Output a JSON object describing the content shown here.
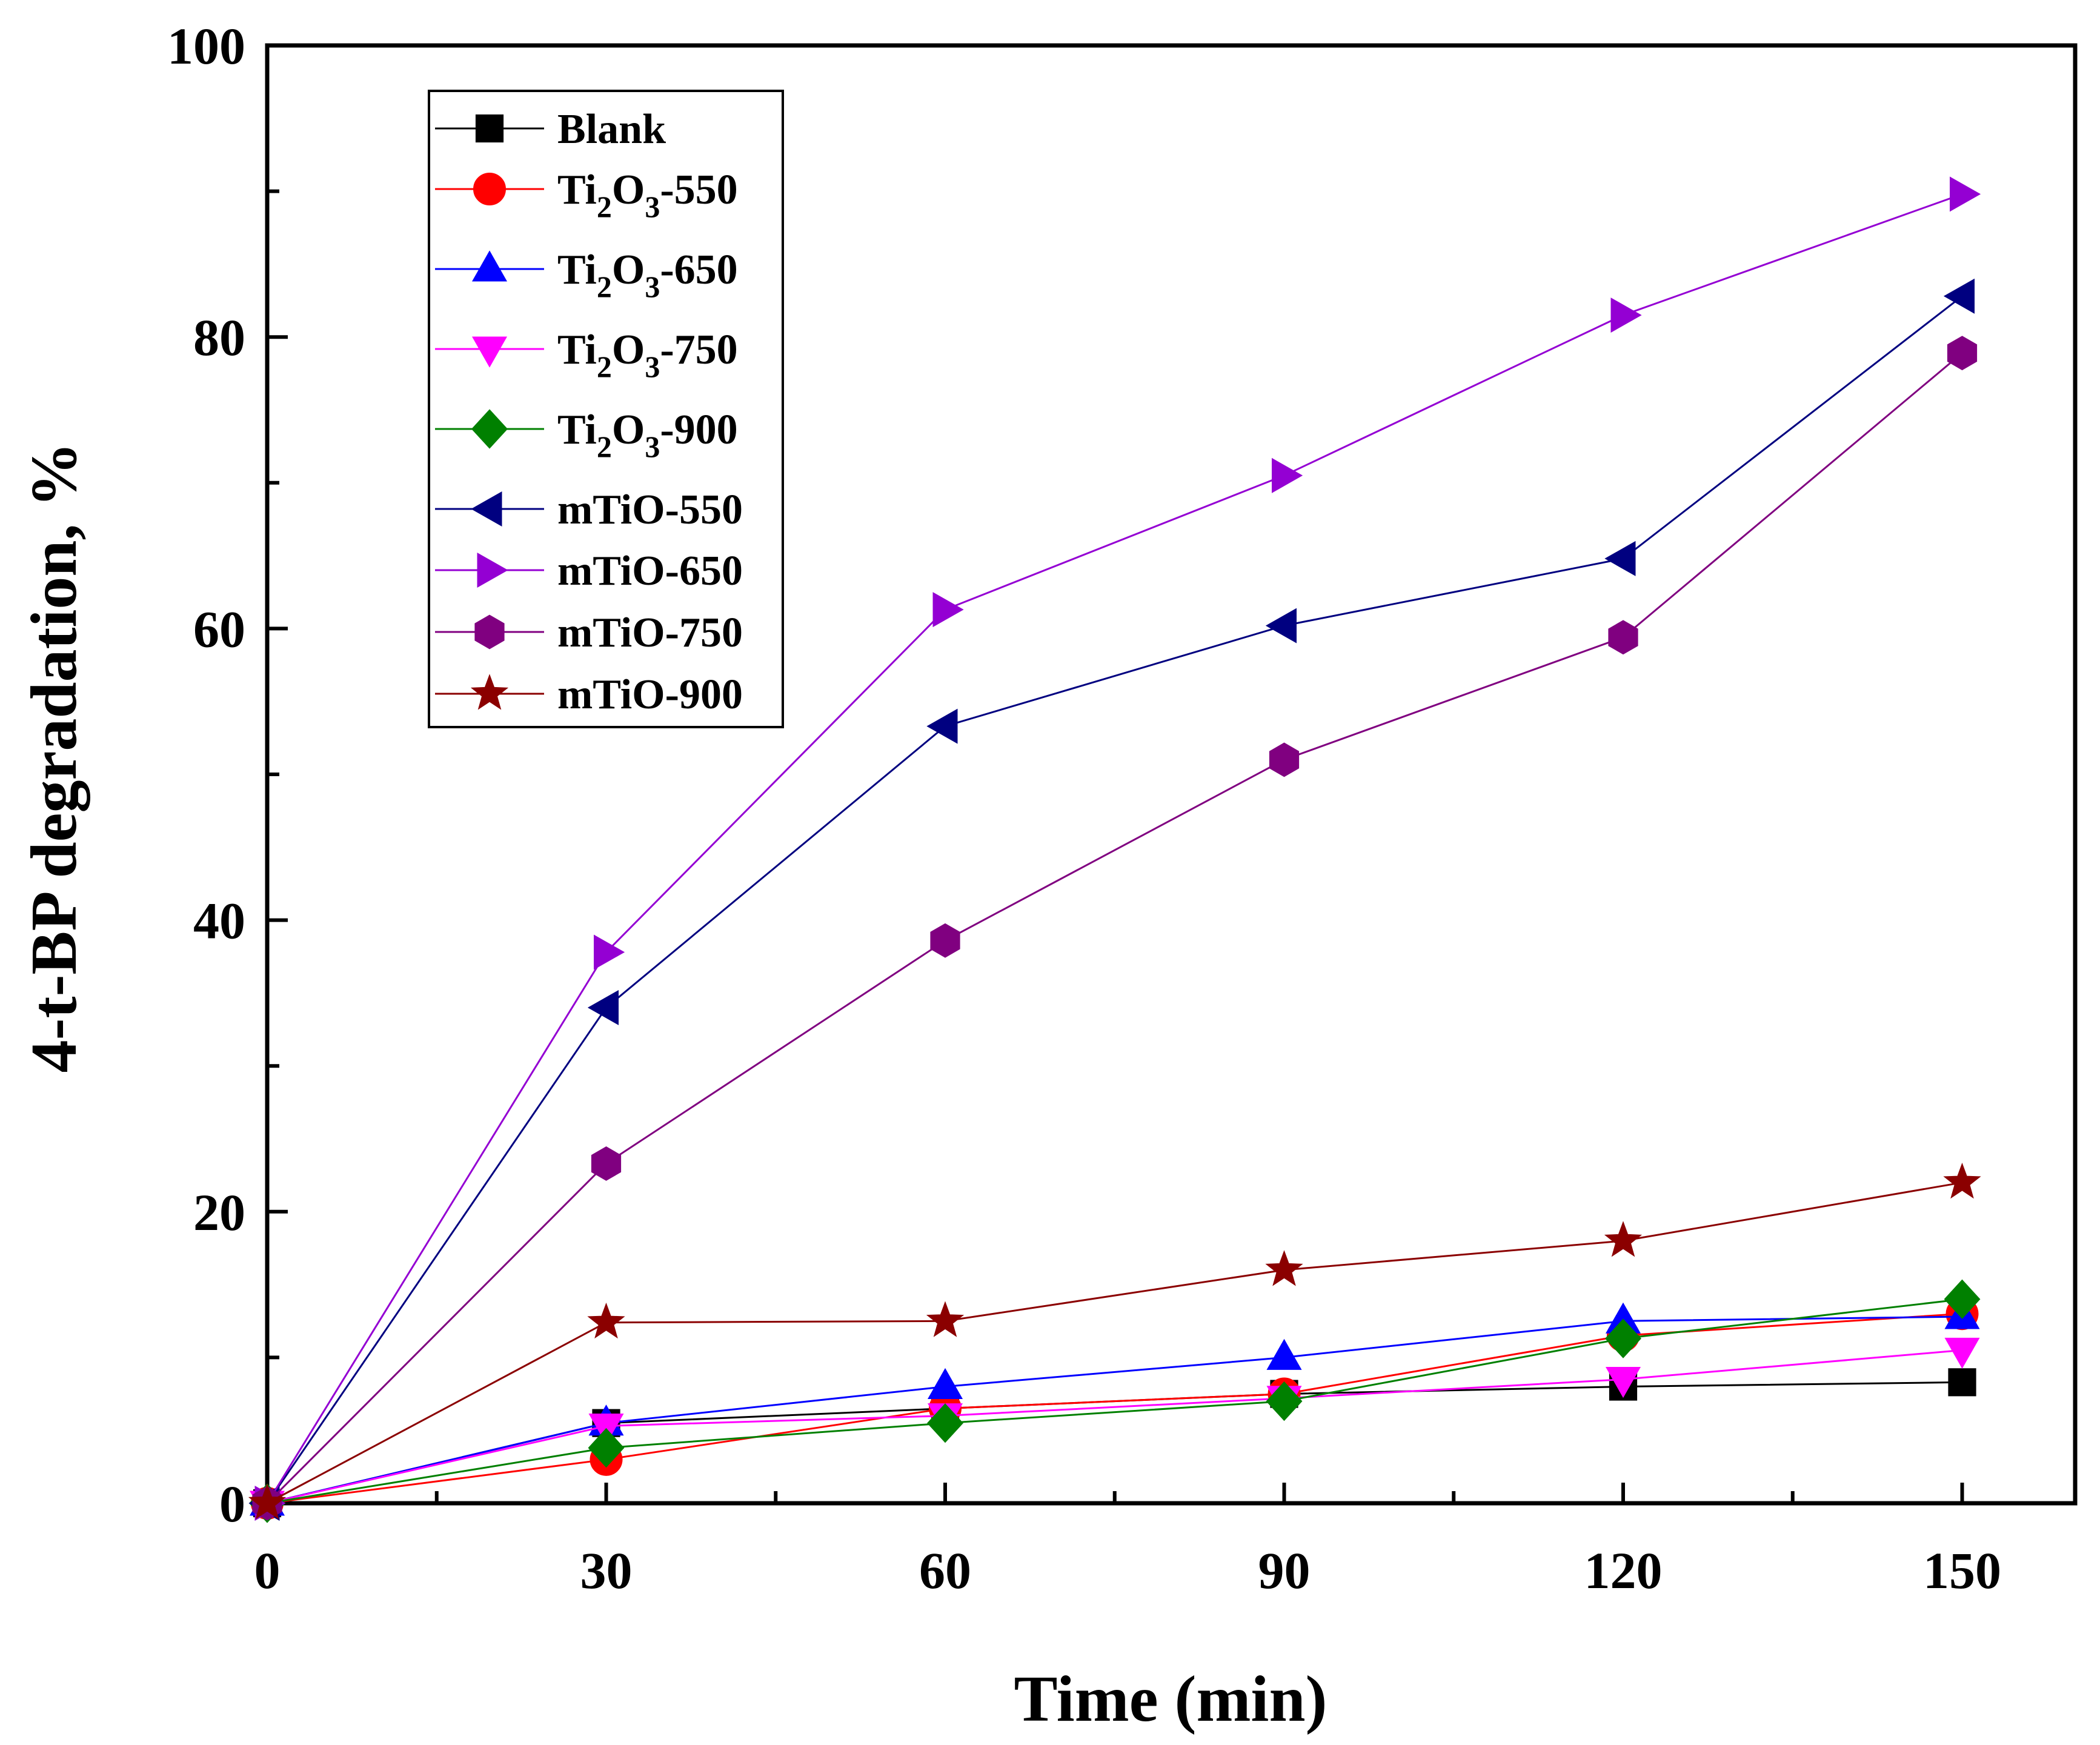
{
  "chart_data": {
    "type": "line",
    "title": "",
    "xlabel": "Time (min)",
    "ylabel": "4-t-BP degradation, %",
    "xlim": [
      0,
      160
    ],
    "ylim": [
      0,
      100
    ],
    "xticks": [
      0,
      30,
      60,
      90,
      120,
      150
    ],
    "xtick_labels": [
      "0",
      "30",
      "60",
      "90",
      "120",
      "150"
    ],
    "yticks": [
      0,
      20,
      40,
      60,
      80,
      100
    ],
    "ytick_labels": [
      "0",
      "20",
      "40",
      "60",
      "80",
      "100"
    ],
    "grid": false,
    "legend_position": "top-left",
    "x": [
      0,
      30,
      60,
      90,
      120,
      150
    ],
    "series": [
      {
        "name": "Blank",
        "legend_main": "Blank",
        "legend_sub": [],
        "color": "#000000",
        "marker": "square",
        "values": [
          0,
          5.5,
          6.5,
          7.5,
          8,
          8.3
        ]
      },
      {
        "name": "Ti2O3-550",
        "legend_main": "Ti",
        "legend_sub": [
          "2",
          "O",
          "3",
          "-550"
        ],
        "color": "#ff0000",
        "marker": "circle",
        "values": [
          0,
          3,
          6.5,
          7.5,
          11.5,
          13
        ]
      },
      {
        "name": "Ti2O3-650",
        "legend_main": "Ti",
        "legend_sub": [
          "2",
          "O",
          "3",
          "-650"
        ],
        "color": "#0000ff",
        "marker": "triangle-up",
        "values": [
          0,
          5.5,
          8,
          10,
          12.5,
          12.8
        ]
      },
      {
        "name": "Ti2O3-750",
        "legend_main": "Ti",
        "legend_sub": [
          "2",
          "O",
          "3",
          "-750"
        ],
        "color": "#ff00ff",
        "marker": "triangle-down",
        "values": [
          0,
          5.3,
          6,
          7.2,
          8.5,
          10.5
        ]
      },
      {
        "name": "Ti2O3-900",
        "legend_main": "Ti",
        "legend_sub": [
          "2",
          "O",
          "3",
          "-900"
        ],
        "color": "#008000",
        "marker": "diamond",
        "values": [
          0,
          3.8,
          5.5,
          7,
          11.3,
          14
        ]
      },
      {
        "name": "mTiO-550",
        "legend_main": "mTiO-550",
        "legend_sub": [],
        "color": "#000080",
        "marker": "triangle-left",
        "values": [
          0,
          34,
          53.3,
          60.2,
          64.8,
          82.8
        ]
      },
      {
        "name": "mTiO-650",
        "legend_main": "mTiO-650",
        "legend_sub": [],
        "color": "#9400d3",
        "marker": "triangle-right",
        "values": [
          0,
          37.8,
          61.3,
          70.5,
          81.5,
          89.8
        ]
      },
      {
        "name": "mTiO-750",
        "legend_main": "mTiO-750",
        "legend_sub": [],
        "color": "#800080",
        "marker": "hexagon",
        "values": [
          0,
          23.3,
          38.6,
          51,
          59.4,
          78.9
        ]
      },
      {
        "name": "mTiO-900",
        "legend_main": "mTiO-900",
        "legend_sub": [],
        "color": "#8b0000",
        "marker": "star",
        "values": [
          0,
          12.4,
          12.5,
          16,
          18,
          22
        ]
      }
    ]
  }
}
